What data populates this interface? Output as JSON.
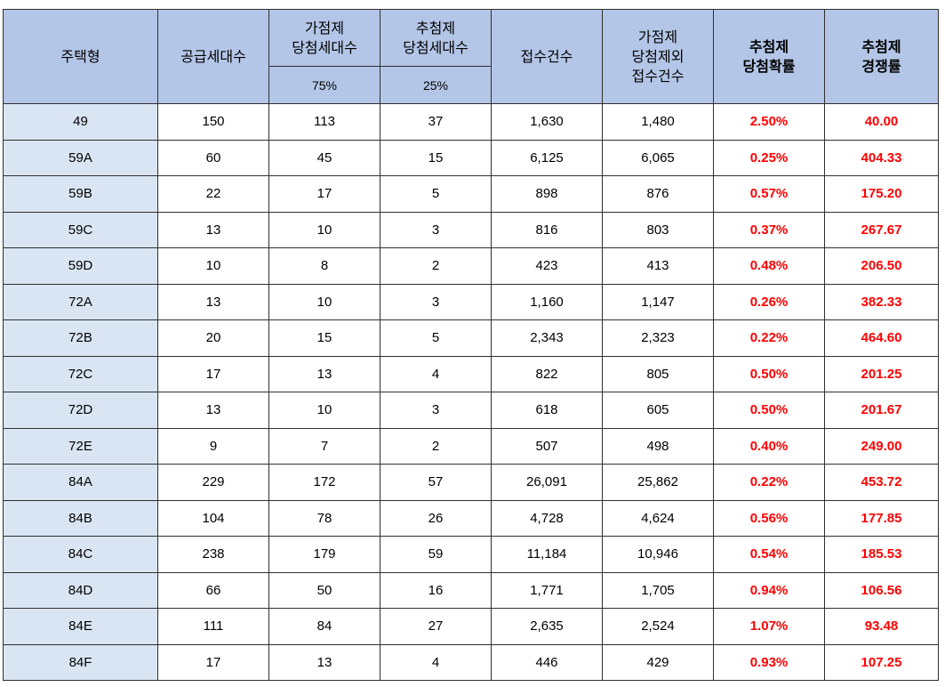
{
  "table": {
    "headers": {
      "type": "주택형",
      "supply": "공급세대수",
      "score_win": [
        "가점제",
        "당첨세대수"
      ],
      "score_pct": "75%",
      "lottery_win": [
        "추첨제",
        "당첨세대수"
      ],
      "lottery_pct": "25%",
      "applications": "접수건수",
      "non_score_apps": [
        "가점제",
        "당첨제외",
        "접수건수"
      ],
      "lottery_prob": [
        "추첨제",
        "당첨확률"
      ],
      "lottery_comp": [
        "추첨제",
        "경쟁률"
      ]
    },
    "rows": [
      {
        "type": "49",
        "supply": "150",
        "score": "113",
        "lottery": "37",
        "apps": "1,630",
        "excl": "1,480",
        "prob": "2.50%",
        "comp": "40.00"
      },
      {
        "type": "59A",
        "supply": "60",
        "score": "45",
        "lottery": "15",
        "apps": "6,125",
        "excl": "6,065",
        "prob": "0.25%",
        "comp": "404.33"
      },
      {
        "type": "59B",
        "supply": "22",
        "score": "17",
        "lottery": "5",
        "apps": "898",
        "excl": "876",
        "prob": "0.57%",
        "comp": "175.20"
      },
      {
        "type": "59C",
        "supply": "13",
        "score": "10",
        "lottery": "3",
        "apps": "816",
        "excl": "803",
        "prob": "0.37%",
        "comp": "267.67"
      },
      {
        "type": "59D",
        "supply": "10",
        "score": "8",
        "lottery": "2",
        "apps": "423",
        "excl": "413",
        "prob": "0.48%",
        "comp": "206.50"
      },
      {
        "type": "72A",
        "supply": "13",
        "score": "10",
        "lottery": "3",
        "apps": "1,160",
        "excl": "1,147",
        "prob": "0.26%",
        "comp": "382.33"
      },
      {
        "type": "72B",
        "supply": "20",
        "score": "15",
        "lottery": "5",
        "apps": "2,343",
        "excl": "2,323",
        "prob": "0.22%",
        "comp": "464.60"
      },
      {
        "type": "72C",
        "supply": "17",
        "score": "13",
        "lottery": "4",
        "apps": "822",
        "excl": "805",
        "prob": "0.50%",
        "comp": "201.25"
      },
      {
        "type": "72D",
        "supply": "13",
        "score": "10",
        "lottery": "3",
        "apps": "618",
        "excl": "605",
        "prob": "0.50%",
        "comp": "201.67"
      },
      {
        "type": "72E",
        "supply": "9",
        "score": "7",
        "lottery": "2",
        "apps": "507",
        "excl": "498",
        "prob": "0.40%",
        "comp": "249.00"
      },
      {
        "type": "84A",
        "supply": "229",
        "score": "172",
        "lottery": "57",
        "apps": "26,091",
        "excl": "25,862",
        "prob": "0.22%",
        "comp": "453.72"
      },
      {
        "type": "84B",
        "supply": "104",
        "score": "78",
        "lottery": "26",
        "apps": "4,728",
        "excl": "4,624",
        "prob": "0.56%",
        "comp": "177.85"
      },
      {
        "type": "84C",
        "supply": "238",
        "score": "179",
        "lottery": "59",
        "apps": "11,184",
        "excl": "10,946",
        "prob": "0.54%",
        "comp": "185.53"
      },
      {
        "type": "84D",
        "supply": "66",
        "score": "50",
        "lottery": "16",
        "apps": "1,771",
        "excl": "1,705",
        "prob": "0.94%",
        "comp": "106.56"
      },
      {
        "type": "84E",
        "supply": "111",
        "score": "84",
        "lottery": "27",
        "apps": "2,635",
        "excl": "2,524",
        "prob": "1.07%",
        "comp": "93.48"
      },
      {
        "type": "84F",
        "supply": "17",
        "score": "13",
        "lottery": "4",
        "apps": "446",
        "excl": "429",
        "prob": "0.93%",
        "comp": "107.25"
      }
    ]
  },
  "colors": {
    "header_bg": "#b4c6e7",
    "type_col_bg": "#d9e5f3",
    "highlight_text": "#ff0000"
  }
}
